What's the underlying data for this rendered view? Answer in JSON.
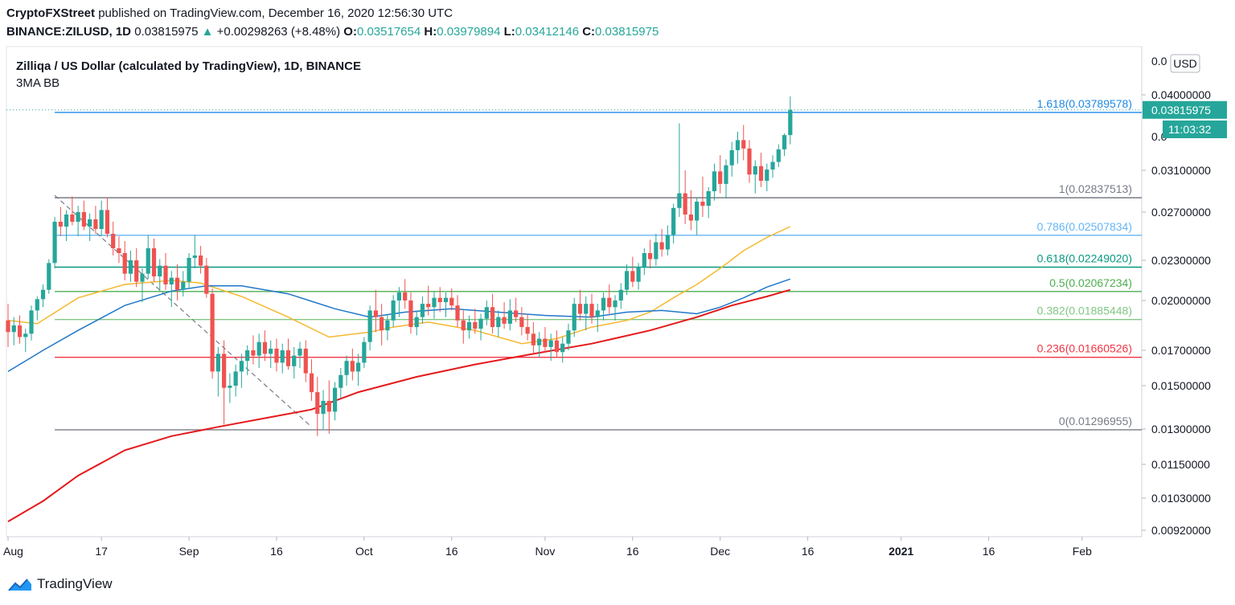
{
  "header": {
    "author": "CryptoFXStreet",
    "published_text": "published on TradingView.com, December 16, 2020 12:56:30 UTC",
    "symbol": "BINANCE:ZILUSD, 1D",
    "last": "0.03815975",
    "change_arrow": "▲",
    "change": "+0.00298263 (+8.48%)",
    "o_label": "O:",
    "o": "0.03517654",
    "h_label": "H:",
    "h": "0.03979894",
    "l_label": "L:",
    "l": "0.03412146",
    "c_label": "C:",
    "c": "0.03815975"
  },
  "brand": {
    "name": "TradingView"
  },
  "chart_data": {
    "type": "candlestick",
    "title": "Zilliqa / US Dollar (calculated by TradingView), 1D, BINANCE",
    "subtitle": "3MA BB",
    "currency": "USD",
    "last_price_label": "0.03815975",
    "countdown": "11:03:32",
    "colors": {
      "up": "#26a69a",
      "down": "#ef5350",
      "ma_fast": "#f5b82e",
      "ma_mid": "#1f77c9",
      "ma_slow": "#e5191c"
    },
    "y_ticks": [
      0.04,
      0.031,
      0.027,
      0.023,
      0.02,
      0.017,
      0.015,
      0.013,
      0.0115,
      0.0103,
      0.0092
    ],
    "y_tick_labels": [
      "0.04000000",
      "0.03100000",
      "0.02700000",
      "0.02300000",
      "0.02000000",
      "0.01700000",
      "0.01500000",
      "0.01300000",
      "0.01150000",
      "0.01030000",
      "0.00920000"
    ],
    "top_partial_tick": "0.0",
    "hidden_tick_partial": "0.0",
    "x_ticks": [
      {
        "date": "2020-08-01",
        "label": "Aug"
      },
      {
        "date": "2020-08-17",
        "label": "17"
      },
      {
        "date": "2020-09-01",
        "label": "Sep"
      },
      {
        "date": "2020-09-16",
        "label": "16"
      },
      {
        "date": "2020-10-01",
        "label": "Oct"
      },
      {
        "date": "2020-10-16",
        "label": "16"
      },
      {
        "date": "2020-11-01",
        "label": "Nov"
      },
      {
        "date": "2020-11-16",
        "label": "16"
      },
      {
        "date": "2020-12-01",
        "label": "Dec"
      },
      {
        "date": "2020-12-16",
        "label": "16"
      },
      {
        "date": "2021-01-01",
        "label": "2021"
      },
      {
        "date": "2021-01-16",
        "label": "16"
      },
      {
        "date": "2021-02-01",
        "label": "Feb"
      }
    ],
    "fib_levels": [
      {
        "label": "1.618(0.03789578)",
        "value": 0.03789578,
        "color": "#1e88e5"
      },
      {
        "label": "1(0.02837513)",
        "value": 0.02837513,
        "color": "#787b86"
      },
      {
        "label": "0.786(0.02507834)",
        "value": 0.02507834,
        "color": "#64b5f6"
      },
      {
        "label": "0.618(0.02249020)",
        "value": 0.0224902,
        "color": "#089981"
      },
      {
        "label": "0.5(0.02067234)",
        "value": 0.02067234,
        "color": "#4caf50"
      },
      {
        "label": "0.382(0.01885448)",
        "value": 0.01885448,
        "color": "#81c784"
      },
      {
        "label": "0.236(0.01660526)",
        "value": 0.01660526,
        "color": "#f23645"
      },
      {
        "label": "0(0.01296955)",
        "value": 0.01296955,
        "color": "#787b86"
      }
    ],
    "fib_start_date": "2020-08-09",
    "trend_line": {
      "from": {
        "date": "2020-08-09",
        "value": 0.0286
      },
      "to": {
        "date": "2020-09-22",
        "value": 0.0131
      }
    },
    "ohlc_dates": {
      "start": "2020-08-01",
      "end": "2020-12-16"
    },
    "ohlc": [
      [
        0.0188,
        0.0198,
        0.0172,
        0.0181
      ],
      [
        0.0181,
        0.019,
        0.0173,
        0.0185
      ],
      [
        0.0185,
        0.0191,
        0.0174,
        0.0178
      ],
      [
        0.0178,
        0.0183,
        0.0169,
        0.018
      ],
      [
        0.018,
        0.0197,
        0.0176,
        0.0194
      ],
      [
        0.0194,
        0.0203,
        0.0188,
        0.0201
      ],
      [
        0.0201,
        0.0212,
        0.0196,
        0.0208
      ],
      [
        0.0208,
        0.0231,
        0.0205,
        0.0228
      ],
      [
        0.0228,
        0.0266,
        0.0224,
        0.0262
      ],
      [
        0.0262,
        0.0275,
        0.025,
        0.0258
      ],
      [
        0.0258,
        0.0272,
        0.0246,
        0.0268
      ],
      [
        0.0268,
        0.0285,
        0.0259,
        0.0262
      ],
      [
        0.0262,
        0.0276,
        0.025,
        0.027
      ],
      [
        0.027,
        0.0281,
        0.0255,
        0.0258
      ],
      [
        0.0258,
        0.0269,
        0.0246,
        0.0264
      ],
      [
        0.0264,
        0.0276,
        0.0252,
        0.0256
      ],
      [
        0.0256,
        0.0281,
        0.025,
        0.0272
      ],
      [
        0.0272,
        0.0284,
        0.0249,
        0.0252
      ],
      [
        0.0252,
        0.0262,
        0.0234,
        0.024
      ],
      [
        0.024,
        0.025,
        0.0228,
        0.0236
      ],
      [
        0.0236,
        0.0246,
        0.0215,
        0.022
      ],
      [
        0.022,
        0.0238,
        0.0214,
        0.023
      ],
      [
        0.023,
        0.024,
        0.021,
        0.0214
      ],
      [
        0.0214,
        0.0224,
        0.0199,
        0.022
      ],
      [
        0.022,
        0.0251,
        0.0216,
        0.024
      ],
      [
        0.024,
        0.0248,
        0.0214,
        0.0218
      ],
      [
        0.0218,
        0.0231,
        0.0207,
        0.0226
      ],
      [
        0.0226,
        0.0236,
        0.0208,
        0.0212
      ],
      [
        0.0212,
        0.0222,
        0.0196,
        0.0217
      ],
      [
        0.0217,
        0.0227,
        0.02,
        0.0208
      ],
      [
        0.0208,
        0.0222,
        0.0203,
        0.0214
      ],
      [
        0.0214,
        0.0236,
        0.0209,
        0.0232
      ],
      [
        0.0232,
        0.0251,
        0.0224,
        0.0234
      ],
      [
        0.0234,
        0.0242,
        0.022,
        0.0226
      ],
      [
        0.0226,
        0.0232,
        0.0202,
        0.0205
      ],
      [
        0.0205,
        0.0209,
        0.0154,
        0.0158
      ],
      [
        0.0158,
        0.0172,
        0.0145,
        0.0168
      ],
      [
        0.0168,
        0.0176,
        0.0132,
        0.0149
      ],
      [
        0.0149,
        0.0157,
        0.0142,
        0.015
      ],
      [
        0.015,
        0.0162,
        0.0145,
        0.0158
      ],
      [
        0.0158,
        0.0168,
        0.0149,
        0.0164
      ],
      [
        0.0164,
        0.0173,
        0.0156,
        0.017
      ],
      [
        0.017,
        0.0179,
        0.0162,
        0.0167
      ],
      [
        0.0167,
        0.018,
        0.016,
        0.0175
      ],
      [
        0.0175,
        0.0182,
        0.0164,
        0.0168
      ],
      [
        0.0168,
        0.0176,
        0.016,
        0.0171
      ],
      [
        0.0171,
        0.0177,
        0.0158,
        0.0163
      ],
      [
        0.0163,
        0.0174,
        0.0157,
        0.017
      ],
      [
        0.017,
        0.0177,
        0.0159,
        0.0161
      ],
      [
        0.0161,
        0.0172,
        0.0154,
        0.0167
      ],
      [
        0.0167,
        0.0175,
        0.016,
        0.0171
      ],
      [
        0.0171,
        0.0176,
        0.0152,
        0.0157
      ],
      [
        0.0157,
        0.0165,
        0.0143,
        0.0147
      ],
      [
        0.0147,
        0.0155,
        0.0127,
        0.0137
      ],
      [
        0.0137,
        0.0148,
        0.013,
        0.0143
      ],
      [
        0.0143,
        0.0153,
        0.0128,
        0.0138
      ],
      [
        0.0138,
        0.0152,
        0.0134,
        0.0149
      ],
      [
        0.0149,
        0.016,
        0.0144,
        0.0156
      ],
      [
        0.0156,
        0.0167,
        0.015,
        0.0164
      ],
      [
        0.0164,
        0.0171,
        0.0153,
        0.0158
      ],
      [
        0.0158,
        0.0168,
        0.015,
        0.0163
      ],
      [
        0.0163,
        0.0178,
        0.016,
        0.0175
      ],
      [
        0.0175,
        0.0197,
        0.017,
        0.0194
      ],
      [
        0.0194,
        0.0208,
        0.0181,
        0.019
      ],
      [
        0.019,
        0.0198,
        0.0173,
        0.0182
      ],
      [
        0.0182,
        0.0192,
        0.0176,
        0.0188
      ],
      [
        0.0188,
        0.0204,
        0.0184,
        0.02
      ],
      [
        0.02,
        0.021,
        0.019,
        0.0206
      ],
      [
        0.0206,
        0.0216,
        0.0195,
        0.02
      ],
      [
        0.02,
        0.0206,
        0.018,
        0.0184
      ],
      [
        0.0184,
        0.0194,
        0.0179,
        0.019
      ],
      [
        0.019,
        0.0203,
        0.0186,
        0.0198
      ],
      [
        0.0198,
        0.0211,
        0.0191,
        0.0196
      ],
      [
        0.0196,
        0.0207,
        0.0189,
        0.0202
      ],
      [
        0.0202,
        0.021,
        0.0193,
        0.0199
      ],
      [
        0.0199,
        0.0206,
        0.019,
        0.0202
      ],
      [
        0.0202,
        0.0209,
        0.0194,
        0.0197
      ],
      [
        0.0197,
        0.0204,
        0.0184,
        0.0188
      ],
      [
        0.0188,
        0.0194,
        0.0174,
        0.0182
      ],
      [
        0.0182,
        0.0191,
        0.0177,
        0.0187
      ],
      [
        0.0187,
        0.0195,
        0.018,
        0.0183
      ],
      [
        0.0183,
        0.0192,
        0.0176,
        0.0189
      ],
      [
        0.0189,
        0.02,
        0.0185,
        0.0196
      ],
      [
        0.0196,
        0.0205,
        0.018,
        0.0184
      ],
      [
        0.0184,
        0.0194,
        0.0178,
        0.019
      ],
      [
        0.019,
        0.0199,
        0.0183,
        0.0186
      ],
      [
        0.0186,
        0.0201,
        0.0182,
        0.0194
      ],
      [
        0.0194,
        0.0202,
        0.0187,
        0.019
      ],
      [
        0.019,
        0.0196,
        0.0179,
        0.0184
      ],
      [
        0.0184,
        0.0192,
        0.0176,
        0.018
      ],
      [
        0.018,
        0.0187,
        0.0168,
        0.0173
      ],
      [
        0.0173,
        0.0181,
        0.0166,
        0.0177
      ],
      [
        0.0177,
        0.0184,
        0.0169,
        0.0172
      ],
      [
        0.0172,
        0.018,
        0.0164,
        0.0176
      ],
      [
        0.0176,
        0.0182,
        0.0166,
        0.0169
      ],
      [
        0.0169,
        0.0178,
        0.0163,
        0.0174
      ],
      [
        0.0174,
        0.0186,
        0.017,
        0.0182
      ],
      [
        0.0182,
        0.0202,
        0.0178,
        0.0198
      ],
      [
        0.0198,
        0.0208,
        0.0188,
        0.0192
      ],
      [
        0.0192,
        0.0203,
        0.0182,
        0.0198
      ],
      [
        0.0198,
        0.0205,
        0.0186,
        0.019
      ],
      [
        0.019,
        0.0198,
        0.0181,
        0.0194
      ],
      [
        0.0194,
        0.0206,
        0.0188,
        0.0202
      ],
      [
        0.0202,
        0.0212,
        0.0192,
        0.0196
      ],
      [
        0.0196,
        0.0204,
        0.0188,
        0.02
      ],
      [
        0.02,
        0.0213,
        0.0195,
        0.0208
      ],
      [
        0.0208,
        0.0227,
        0.0204,
        0.0222
      ],
      [
        0.0222,
        0.0233,
        0.021,
        0.0214
      ],
      [
        0.0214,
        0.0228,
        0.0208,
        0.0225
      ],
      [
        0.0225,
        0.024,
        0.0219,
        0.0236
      ],
      [
        0.0236,
        0.0247,
        0.0224,
        0.0231
      ],
      [
        0.0231,
        0.0252,
        0.0226,
        0.0245
      ],
      [
        0.0245,
        0.0256,
        0.0233,
        0.0239
      ],
      [
        0.0239,
        0.0259,
        0.0234,
        0.0251
      ],
      [
        0.0251,
        0.0278,
        0.0244,
        0.0274
      ],
      [
        0.0274,
        0.0366,
        0.0266,
        0.0288
      ],
      [
        0.0288,
        0.031,
        0.026,
        0.0268
      ],
      [
        0.0268,
        0.0291,
        0.0255,
        0.0263
      ],
      [
        0.0263,
        0.0284,
        0.0251,
        0.028
      ],
      [
        0.028,
        0.0304,
        0.0266,
        0.0276
      ],
      [
        0.0276,
        0.0294,
        0.0265,
        0.029
      ],
      [
        0.029,
        0.0318,
        0.0281,
        0.0309
      ],
      [
        0.0309,
        0.0328,
        0.0288,
        0.0297
      ],
      [
        0.0297,
        0.0323,
        0.0283,
        0.0316
      ],
      [
        0.0316,
        0.0344,
        0.0304,
        0.0334
      ],
      [
        0.0334,
        0.0356,
        0.0318,
        0.0346
      ],
      [
        0.0346,
        0.0364,
        0.0322,
        0.0336
      ],
      [
        0.0336,
        0.0346,
        0.0298,
        0.0306
      ],
      [
        0.0306,
        0.0322,
        0.0288,
        0.0315
      ],
      [
        0.0315,
        0.0331,
        0.0294,
        0.03
      ],
      [
        0.03,
        0.0318,
        0.029,
        0.0311
      ],
      [
        0.0311,
        0.0328,
        0.0303,
        0.032
      ],
      [
        0.032,
        0.0341,
        0.0314,
        0.0335
      ],
      [
        0.0335,
        0.0354,
        0.0327,
        0.0352
      ],
      [
        0.0352,
        0.0398,
        0.0341,
        0.0382
      ]
    ],
    "ma_fast": [
      [
        0,
        0.0188
      ],
      [
        5,
        0.0186
      ],
      [
        12,
        0.0202
      ],
      [
        20,
        0.0212
      ],
      [
        28,
        0.0215
      ],
      [
        33,
        0.0213
      ],
      [
        40,
        0.0203
      ],
      [
        48,
        0.019
      ],
      [
        55,
        0.0178
      ],
      [
        62,
        0.0181
      ],
      [
        66,
        0.0184
      ],
      [
        72,
        0.0187
      ],
      [
        80,
        0.0182
      ],
      [
        88,
        0.0174
      ],
      [
        94,
        0.0177
      ],
      [
        100,
        0.0184
      ],
      [
        106,
        0.0188
      ],
      [
        110,
        0.0193
      ],
      [
        114,
        0.0202
      ],
      [
        118,
        0.0212
      ],
      [
        122,
        0.0224
      ],
      [
        126,
        0.0238
      ],
      [
        130,
        0.0249
      ],
      [
        134,
        0.0258
      ]
    ],
    "ma_mid": [
      [
        0,
        0.0158
      ],
      [
        6,
        0.017
      ],
      [
        12,
        0.0182
      ],
      [
        20,
        0.0197
      ],
      [
        28,
        0.0207
      ],
      [
        34,
        0.0211
      ],
      [
        40,
        0.0211
      ],
      [
        48,
        0.0205
      ],
      [
        56,
        0.0195
      ],
      [
        62,
        0.019
      ],
      [
        68,
        0.0193
      ],
      [
        76,
        0.0195
      ],
      [
        84,
        0.0193
      ],
      [
        92,
        0.0191
      ],
      [
        100,
        0.019
      ],
      [
        106,
        0.0193
      ],
      [
        112,
        0.0194
      ],
      [
        118,
        0.0192
      ],
      [
        122,
        0.0196
      ],
      [
        126,
        0.0202
      ],
      [
        130,
        0.021
      ],
      [
        134,
        0.0216
      ]
    ],
    "ma_slow": [
      [
        0,
        0.0095
      ],
      [
        6,
        0.0102
      ],
      [
        12,
        0.0111
      ],
      [
        20,
        0.0121
      ],
      [
        28,
        0.0127
      ],
      [
        36,
        0.0131
      ],
      [
        44,
        0.0135
      ],
      [
        52,
        0.0139
      ],
      [
        60,
        0.0147
      ],
      [
        70,
        0.0155
      ],
      [
        80,
        0.0162
      ],
      [
        90,
        0.0168
      ],
      [
        100,
        0.0174
      ],
      [
        110,
        0.0182
      ],
      [
        118,
        0.019
      ],
      [
        124,
        0.0197
      ],
      [
        130,
        0.0203
      ],
      [
        134,
        0.0208
      ]
    ]
  }
}
